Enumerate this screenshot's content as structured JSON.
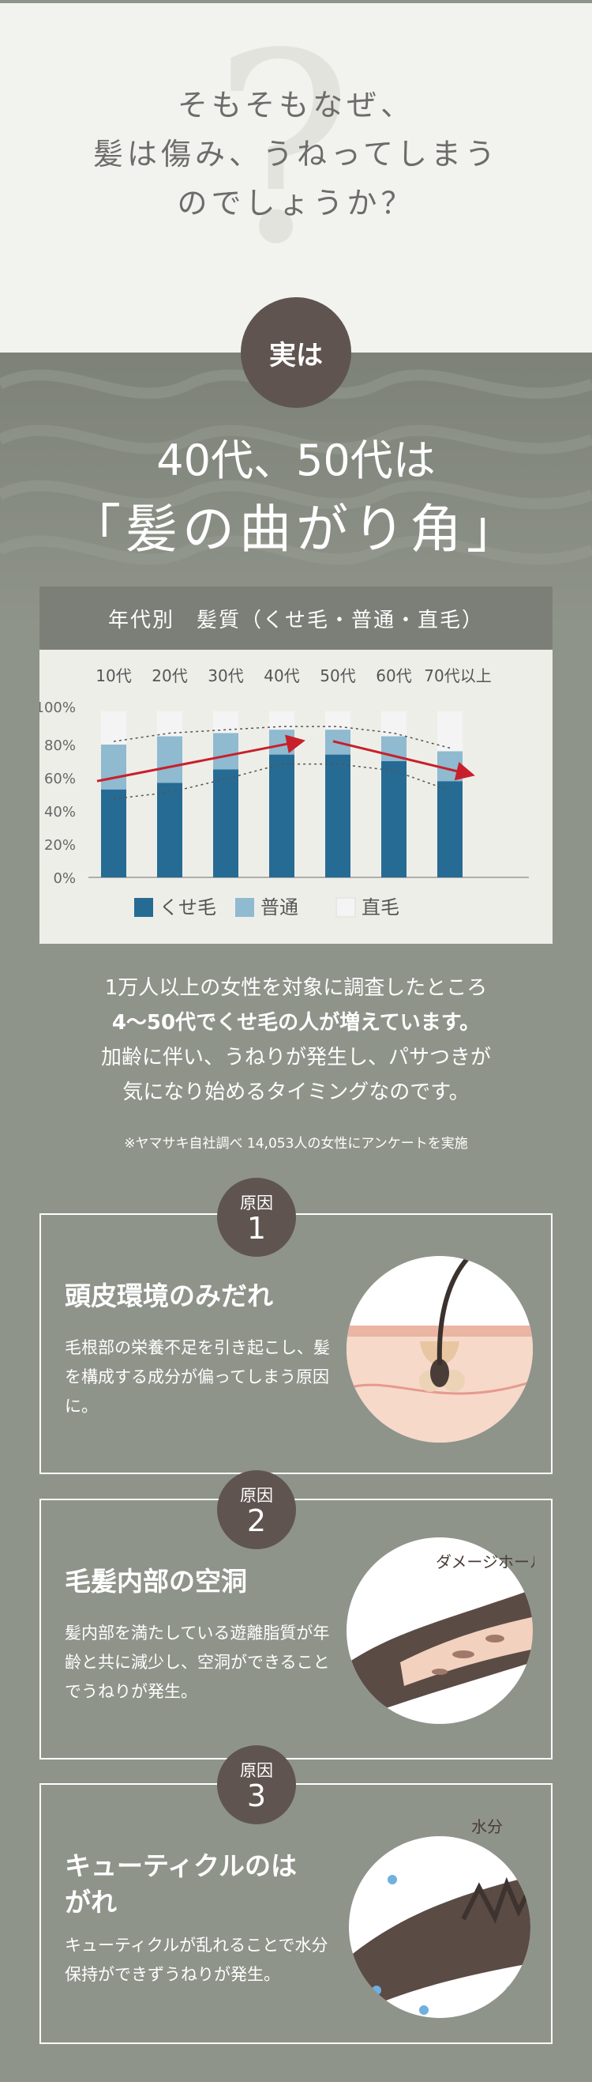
{
  "header": {
    "qmark": "?",
    "lines": [
      "そもそもなぜ、",
      "髪は傷み、うねってしまう",
      "のでしょうか？"
    ]
  },
  "badge_jitsu": "実は",
  "title": {
    "line1": "40代、50代は",
    "line2": "「髪の曲がり角」"
  },
  "chart_data": {
    "type": "bar",
    "title": "年代別　髪質（くせ毛・普通・直毛）",
    "categories": [
      "10代",
      "20代",
      "30代",
      "40代",
      "50代",
      "60代",
      "70代以上"
    ],
    "series": [
      {
        "name": "くせ毛",
        "values": [
          53,
          57,
          65,
          74,
          74,
          70,
          58
        ]
      },
      {
        "name": "普通",
        "values": [
          27,
          28,
          22,
          15,
          15,
          15,
          18
        ]
      },
      {
        "name": "直毛",
        "values": [
          20,
          15,
          13,
          11,
          11,
          15,
          24
        ]
      }
    ],
    "yticks": [
      "100%",
      "80%",
      "60%",
      "40%",
      "20%",
      "0%"
    ],
    "ylim": [
      0,
      100
    ],
    "colors": {
      "くせ毛": "#266b94",
      "普通": "#8fbad0",
      "直毛": "#f4f4f4"
    },
    "legend": "bottom-left"
  },
  "description": {
    "line1": "1万人以上の女性を対象に調査したところ",
    "line2": "4〜50代でくせ毛の人が増えています。",
    "line3": "加齢に伴い、うねりが発生し、パサつきが",
    "line4": "気になり始めるタイミングなのです。"
  },
  "note": "※ヤマサキ自社調べ 14,053人の女性にアンケートを実施",
  "causes": [
    {
      "label": "原因",
      "num": "1",
      "title": "頭皮環境のみだれ",
      "text": "毛根部の栄養不足を引き起こし、髪を構成する成分が偏ってしまう原因に。"
    },
    {
      "label": "原因",
      "num": "2",
      "title": "毛髪内部の空洞",
      "text": "髪内部を満たしている遊離脂質が年齢と共に減少し、空洞ができることでうねりが発生。",
      "illus_label": "ダメージホール"
    },
    {
      "label": "原因",
      "num": "3",
      "title": "キューティクルのはがれ",
      "text": "キューティクルが乱れることで水分保持ができずうねりが発生。",
      "illus_label": "水分"
    }
  ]
}
